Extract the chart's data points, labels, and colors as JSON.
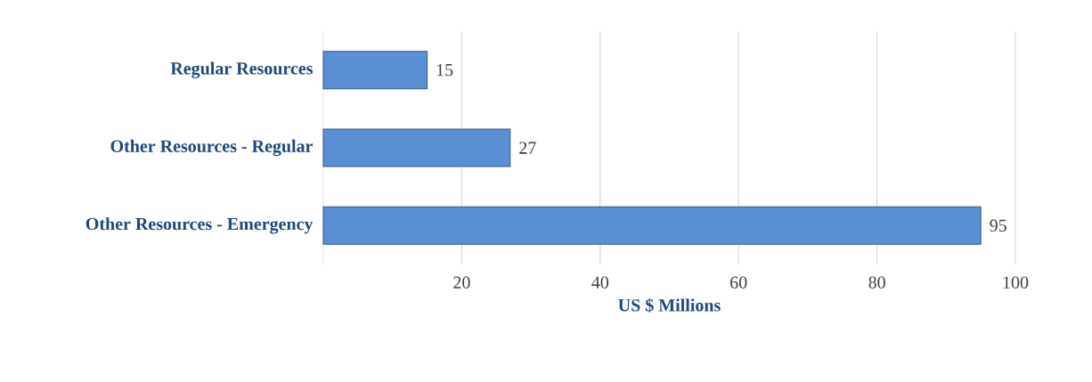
{
  "chart_data": {
    "type": "bar",
    "orientation": "horizontal",
    "xlabel": "US $ Millions",
    "categories": [
      "Regular Resources",
      "Other Resources - Regular",
      "Other Resources - Emergency"
    ],
    "values": [
      15,
      27,
      95
    ],
    "color": "#5a8fd4",
    "data_labels": true,
    "xlim": [
      0,
      100
    ],
    "xticks": [
      20,
      40,
      60,
      80,
      100
    ],
    "grid": "x"
  }
}
